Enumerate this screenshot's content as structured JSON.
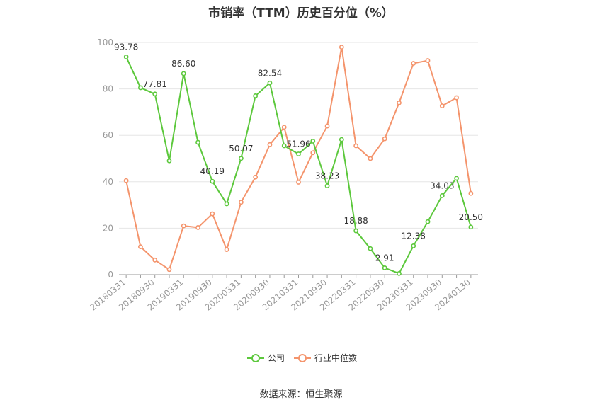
{
  "chart_data": {
    "type": "line",
    "title": "市销率（TTM）历史百分位（%）",
    "source": "数据来源：恒生聚源",
    "ylim": [
      0,
      100
    ],
    "yticks": [
      "0",
      "20",
      "40",
      "60",
      "80",
      "100"
    ],
    "grid": true,
    "legend_position": "bottom-center",
    "x": [
      "20180331",
      "20180630",
      "20180930",
      "20181231",
      "20190331",
      "20190630",
      "20190930",
      "20191231",
      "20200331",
      "20200630",
      "20200930",
      "20201231",
      "20210331",
      "20210630",
      "20210930",
      "20211231",
      "20220331",
      "20220630",
      "20220930",
      "20221231",
      "20230331",
      "20230630",
      "20230930",
      "20231231",
      "20240130"
    ],
    "xtick_labels": [
      "20180331",
      "20180930",
      "20190331",
      "20190930",
      "20200331",
      "20200930",
      "20210331",
      "20210930",
      "20220331",
      "20220930",
      "20230331",
      "20230930",
      "20240130"
    ],
    "series": [
      {
        "name": "公司",
        "color": "#5cc83c",
        "values": [
          93.78,
          80.5,
          77.81,
          49,
          86.6,
          57,
          40.19,
          30.5,
          50.07,
          77,
          82.54,
          55.5,
          51.96,
          57.5,
          38.23,
          58.2,
          18.88,
          11.2,
          2.91,
          0.5,
          12.38,
          22.8,
          34.03,
          41.5,
          20.5
        ],
        "labels": [
          "93.78",
          "",
          "77.81",
          "",
          "86.60",
          "",
          "40.19",
          "",
          "50.07",
          "",
          "82.54",
          "",
          "51.96",
          "",
          "38.23",
          "",
          "18.88",
          "",
          "2.91",
          "",
          "12.38",
          "",
          "34.03",
          "",
          "20.50"
        ]
      },
      {
        "name": "行业中位数",
        "color": "#f4946c",
        "values": [
          40.5,
          12,
          6.3,
          2.2,
          21,
          20.3,
          26.2,
          10.8,
          31.2,
          42,
          56,
          63.5,
          39.8,
          52.5,
          64,
          98,
          55.5,
          50,
          58.5,
          74,
          91,
          92.2,
          72.7,
          76.2,
          35
        ]
      }
    ]
  },
  "legend": {
    "company": "公司",
    "industry": "行业中位数"
  }
}
